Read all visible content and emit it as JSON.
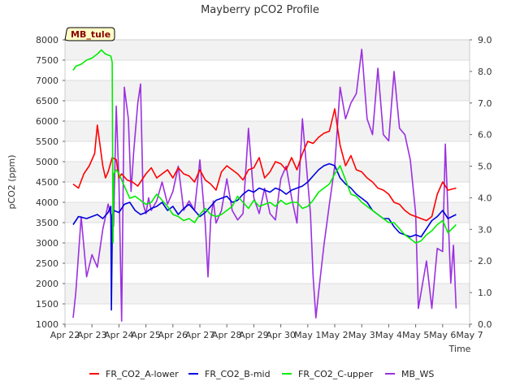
{
  "chart_data": {
    "type": "line",
    "title": "Mayberry pCO2 Profile",
    "site_label": "MB_tule",
    "xlabel": "Time",
    "ylabel": "pCO2 (ppm)",
    "ylim": [
      1000,
      8000
    ],
    "y2lim": [
      0.0,
      9.0
    ],
    "xlim": [
      0,
      15
    ],
    "yticks": [
      "1000",
      "1500",
      "2000",
      "2500",
      "3000",
      "3500",
      "4000",
      "4500",
      "5000",
      "5500",
      "6000",
      "6500",
      "7000",
      "7500",
      "8000"
    ],
    "y2ticks": [
      "0.0",
      "1.0",
      "2.0",
      "3.0",
      "4.0",
      "5.0",
      "6.0",
      "7.0",
      "8.0",
      "9.0"
    ],
    "x_tick_labels": [
      "Apr 22",
      "Apr 23",
      "Apr 24",
      "Apr 25",
      "Apr 26",
      "Apr 27",
      "Apr 28",
      "Apr 29",
      "Apr 30",
      "May 1",
      "May 2",
      "May 3",
      "May 4",
      "May 5",
      "May 6",
      "May 7"
    ],
    "legend_position": "bottom",
    "series": [
      {
        "name": "FR_CO2_A-lower",
        "color": "#ff0000",
        "axis": "left",
        "x": [
          0.3,
          0.5,
          0.7,
          0.9,
          1.1,
          1.2,
          1.4,
          1.5,
          1.6,
          1.75,
          1.9,
          2.0,
          2.1,
          2.3,
          2.5,
          2.7,
          3.0,
          3.2,
          3.4,
          3.6,
          3.8,
          4.0,
          4.2,
          4.4,
          4.6,
          4.8,
          5.0,
          5.2,
          5.4,
          5.6,
          5.8,
          6.0,
          6.2,
          6.4,
          6.6,
          6.8,
          7.0,
          7.2,
          7.4,
          7.6,
          7.8,
          8.0,
          8.2,
          8.4,
          8.6,
          8.8,
          9.0,
          9.2,
          9.4,
          9.6,
          9.8,
          10.0,
          10.2,
          10.4,
          10.6,
          10.8,
          11.0,
          11.2,
          11.4,
          11.6,
          11.8,
          12.0,
          12.2,
          12.4,
          12.6,
          12.8,
          13.0,
          13.2,
          13.4,
          13.6,
          13.8,
          14.0,
          14.2,
          14.5
        ],
        "y": [
          4450,
          4350,
          4700,
          4900,
          5200,
          5900,
          4900,
          4600,
          4750,
          5100,
          5050,
          4600,
          4700,
          4550,
          4500,
          4400,
          4700,
          4850,
          4600,
          4700,
          4800,
          4600,
          4850,
          4700,
          4650,
          4500,
          4800,
          4550,
          4450,
          4300,
          4750,
          4900,
          4800,
          4700,
          4550,
          4800,
          4850,
          5100,
          4600,
          4750,
          5000,
          4950,
          4800,
          5100,
          4800,
          5200,
          5500,
          5450,
          5600,
          5700,
          5750,
          6300,
          5400,
          4900,
          5150,
          4800,
          4750,
          4600,
          4500,
          4350,
          4300,
          4200,
          4000,
          3950,
          3800,
          3700,
          3650,
          3600,
          3550,
          3650,
          4200,
          4500,
          4300,
          4350
        ]
      },
      {
        "name": "FR_CO2_B-mid",
        "color": "#0000dd",
        "axis": "left",
        "x": [
          0.3,
          0.5,
          0.8,
          1.0,
          1.2,
          1.4,
          1.6,
          1.7,
          1.72,
          1.76,
          1.8,
          2.0,
          2.2,
          2.4,
          2.6,
          2.8,
          3.0,
          3.2,
          3.4,
          3.6,
          3.8,
          4.0,
          4.2,
          4.4,
          4.6,
          4.8,
          5.0,
          5.2,
          5.4,
          5.6,
          5.8,
          6.0,
          6.2,
          6.4,
          6.6,
          6.8,
          7.0,
          7.2,
          7.4,
          7.6,
          7.8,
          8.0,
          8.2,
          8.4,
          8.6,
          8.8,
          9.0,
          9.2,
          9.4,
          9.6,
          9.8,
          10.0,
          10.2,
          10.4,
          10.6,
          10.8,
          11.0,
          11.2,
          11.4,
          11.6,
          11.8,
          12.0,
          12.2,
          12.4,
          12.6,
          12.8,
          13.0,
          13.2,
          13.4,
          13.6,
          13.8,
          14.0,
          14.2,
          14.5
        ],
        "y": [
          3450,
          3650,
          3600,
          3650,
          3700,
          3600,
          3750,
          3900,
          1350,
          3700,
          3800,
          3750,
          3950,
          4000,
          3800,
          3700,
          3750,
          3850,
          3900,
          4000,
          3800,
          3900,
          3700,
          3850,
          3950,
          3800,
          3650,
          3750,
          3900,
          4050,
          4100,
          4150,
          4000,
          4050,
          4200,
          4300,
          4250,
          4350,
          4300,
          4250,
          4350,
          4300,
          4200,
          4300,
          4350,
          4400,
          4500,
          4650,
          4800,
          4900,
          4950,
          4900,
          4600,
          4450,
          4350,
          4200,
          4100,
          4000,
          3800,
          3700,
          3600,
          3600,
          3400,
          3250,
          3200,
          3150,
          3200,
          3150,
          3350,
          3550,
          3650,
          3800,
          3600,
          3700
        ]
      },
      {
        "name": "FR_CO2_C-upper",
        "color": "#00ee00",
        "axis": "left",
        "x": [
          0.3,
          0.4,
          0.6,
          0.8,
          1.0,
          1.2,
          1.35,
          1.5,
          1.7,
          1.75,
          1.78,
          1.8,
          1.9,
          2.0,
          2.2,
          2.4,
          2.6,
          2.8,
          3.0,
          3.2,
          3.4,
          3.6,
          3.8,
          4.0,
          4.2,
          4.4,
          4.6,
          4.8,
          5.0,
          5.2,
          5.4,
          5.6,
          5.8,
          6.0,
          6.2,
          6.4,
          6.6,
          6.8,
          7.0,
          7.2,
          7.4,
          7.6,
          7.8,
          8.0,
          8.2,
          8.4,
          8.6,
          8.8,
          9.0,
          9.2,
          9.4,
          9.6,
          9.8,
          10.0,
          10.2,
          10.4,
          10.6,
          10.8,
          11.0,
          11.2,
          11.4,
          11.6,
          11.8,
          12.0,
          12.2,
          12.4,
          12.6,
          12.8,
          13.0,
          13.2,
          13.4,
          13.6,
          13.8,
          14.0,
          14.2,
          14.5
        ],
        "y": [
          7250,
          7350,
          7400,
          7500,
          7550,
          7650,
          7750,
          7650,
          7600,
          7450,
          3000,
          4700,
          4800,
          4700,
          4400,
          4100,
          4150,
          4050,
          3950,
          4000,
          4200,
          4050,
          3900,
          3700,
          3650,
          3550,
          3600,
          3500,
          3700,
          3850,
          3700,
          3650,
          3700,
          3800,
          3900,
          4150,
          4000,
          3850,
          4050,
          3900,
          3950,
          4000,
          3900,
          4050,
          3950,
          4000,
          4000,
          3850,
          3900,
          4050,
          4250,
          4350,
          4450,
          4700,
          4900,
          4550,
          4200,
          4150,
          4000,
          3900,
          3800,
          3700,
          3600,
          3500,
          3500,
          3350,
          3200,
          3100,
          3000,
          3050,
          3200,
          3300,
          3450,
          3550,
          3250,
          3450
        ]
      },
      {
        "name": "MB_WS",
        "color": "#9b30e0",
        "axis": "right",
        "x": [
          0.3,
          0.4,
          0.6,
          0.8,
          1.0,
          1.2,
          1.4,
          1.6,
          1.8,
          1.9,
          2.0,
          2.1,
          2.2,
          2.35,
          2.45,
          2.55,
          2.7,
          2.8,
          2.9,
          3.0,
          3.1,
          3.2,
          3.4,
          3.6,
          3.8,
          4.0,
          4.2,
          4.4,
          4.6,
          4.8,
          5.0,
          5.2,
          5.3,
          5.4,
          5.5,
          5.6,
          5.8,
          6.0,
          6.2,
          6.4,
          6.6,
          6.8,
          7.0,
          7.2,
          7.4,
          7.6,
          7.8,
          8.0,
          8.2,
          8.4,
          8.6,
          8.8,
          9.0,
          9.1,
          9.2,
          9.3,
          9.4,
          9.6,
          9.8,
          10.0,
          10.2,
          10.4,
          10.6,
          10.8,
          11.0,
          11.2,
          11.4,
          11.6,
          11.8,
          12.0,
          12.2,
          12.4,
          12.6,
          12.8,
          13.0,
          13.1,
          13.2,
          13.4,
          13.6,
          13.8,
          14.0,
          14.1,
          14.2,
          14.3,
          14.4,
          14.5
        ],
        "y": [
          0.2,
          1.0,
          3.4,
          1.5,
          2.2,
          1.8,
          3.0,
          3.8,
          3.1,
          6.9,
          4.5,
          0.1,
          7.5,
          6.5,
          4.2,
          5.5,
          7.0,
          7.6,
          3.8,
          3.5,
          4.0,
          3.6,
          3.9,
          4.5,
          3.8,
          4.2,
          5.0,
          3.6,
          3.9,
          3.6,
          5.2,
          3.2,
          1.5,
          3.3,
          3.9,
          3.2,
          3.6,
          4.6,
          3.6,
          3.3,
          3.5,
          6.2,
          4.0,
          3.5,
          4.3,
          3.5,
          3.3,
          4.6,
          5.0,
          4.0,
          3.2,
          6.5,
          4.5,
          3.5,
          1.5,
          0.2,
          1.0,
          2.5,
          3.8,
          5.0,
          7.5,
          6.5,
          7.0,
          7.3,
          8.7,
          6.5,
          6.0,
          8.1,
          6.0,
          5.8,
          8.0,
          6.2,
          6.0,
          5.2,
          3.5,
          0.5,
          1.0,
          2.0,
          0.5,
          2.4,
          2.3,
          5.7,
          3.5,
          1.3,
          2.5,
          0.5
        ]
      }
    ]
  }
}
